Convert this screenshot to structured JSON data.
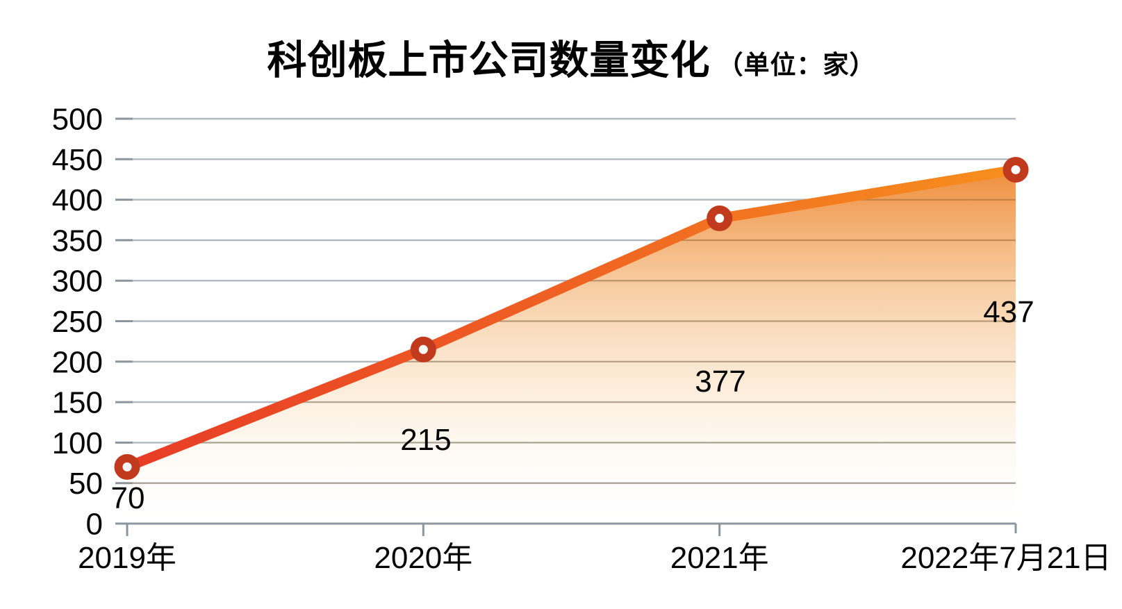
{
  "title": {
    "main": "科创板上市公司数量变化",
    "unit": "（单位：家）"
  },
  "chart_data": {
    "type": "area",
    "title": "科创板上市公司数量变化",
    "unit_label": "（单位：家）",
    "categories": [
      "2019年",
      "2020年",
      "2021年",
      "2022年7月21日"
    ],
    "values": [
      70,
      215,
      377,
      437
    ],
    "data_labels": [
      "70",
      "215",
      "377",
      "437"
    ],
    "yticks": [
      "0",
      "50",
      "100",
      "150",
      "200",
      "250",
      "300",
      "350",
      "400",
      "450",
      "500"
    ],
    "ytick_values": [
      0,
      50,
      100,
      150,
      200,
      250,
      300,
      350,
      400,
      450,
      500
    ],
    "ylim": [
      0,
      500
    ],
    "xlabel": "",
    "ylabel": "",
    "grid": "horizontal",
    "legend": "none",
    "colors": {
      "line_gradient_start": "#e73c26",
      "line_gradient_mid": "#ee5e23",
      "line_gradient_end": "#f78f1d",
      "marker_ring": "#c23a1e",
      "marker_center": "#ffffff",
      "area_top": "#ee842c",
      "area_bottom": "#ffffff",
      "gridline": "#b0b9c0",
      "axis": "#8b959d",
      "text": "#000000"
    }
  }
}
